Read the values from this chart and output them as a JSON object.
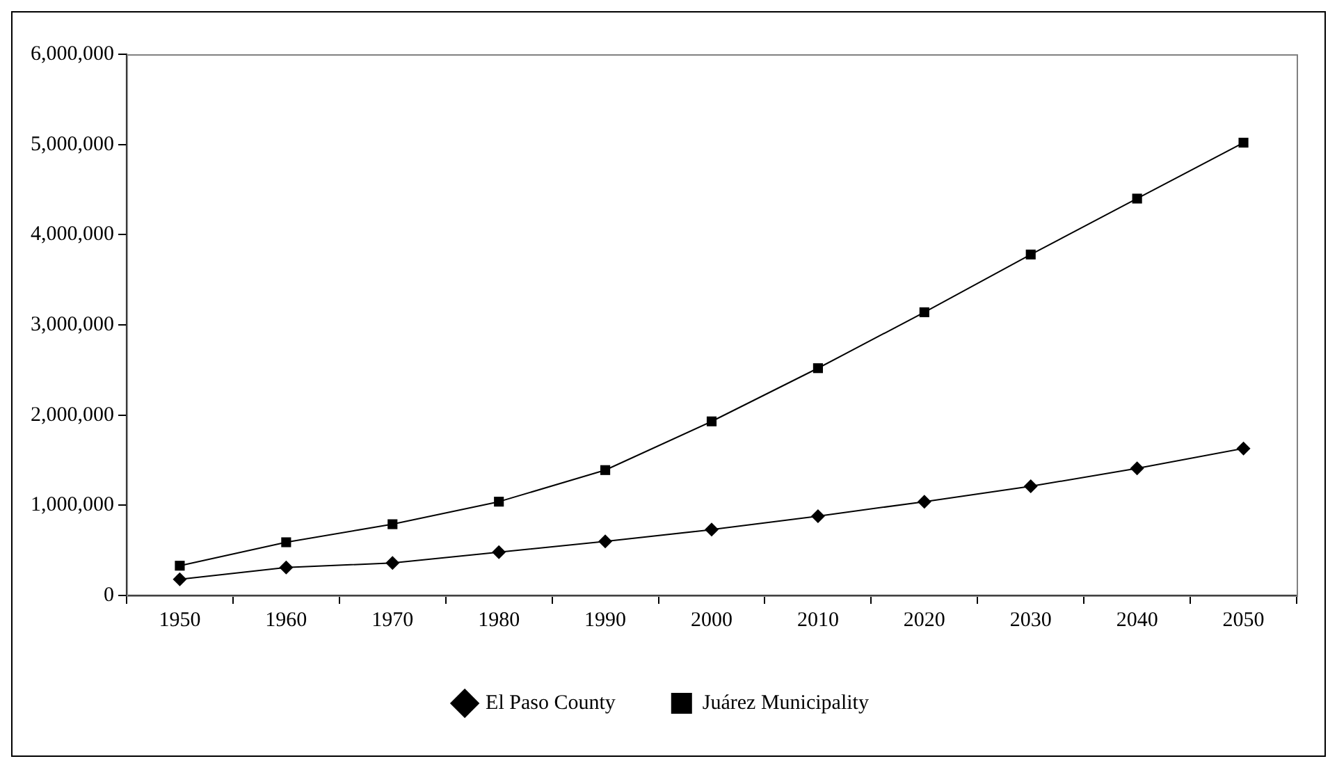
{
  "chart_data": {
    "type": "line",
    "categories": [
      "1950",
      "1960",
      "1970",
      "1980",
      "1990",
      "2000",
      "2010",
      "2020",
      "2030",
      "2040",
      "2050"
    ],
    "series": [
      {
        "name": "El Paso County",
        "color": "#000000",
        "marker": "diamond",
        "values": [
          180000,
          310000,
          360000,
          480000,
          600000,
          730000,
          880000,
          1040000,
          1210000,
          1410000,
          1630000
        ]
      },
      {
        "name": "Juárez Municipality",
        "color": "#000000",
        "marker": "square",
        "values": [
          330000,
          590000,
          790000,
          1040000,
          1390000,
          1930000,
          2520000,
          3140000,
          3780000,
          4400000,
          5020000
        ]
      }
    ],
    "ylim": [
      0,
      6000000
    ],
    "yticks": [
      {
        "value": 0,
        "label": "0"
      },
      {
        "value": 1000000,
        "label": "1,000,000"
      },
      {
        "value": 2000000,
        "label": "2,000,000"
      },
      {
        "value": 3000000,
        "label": "3,000,000"
      },
      {
        "value": 4000000,
        "label": "4,000,000"
      },
      {
        "value": 5000000,
        "label": "5,000,000"
      },
      {
        "value": 6000000,
        "label": "6,000,000"
      }
    ],
    "grid": false,
    "legend": "bottom",
    "line_style": "solid"
  }
}
